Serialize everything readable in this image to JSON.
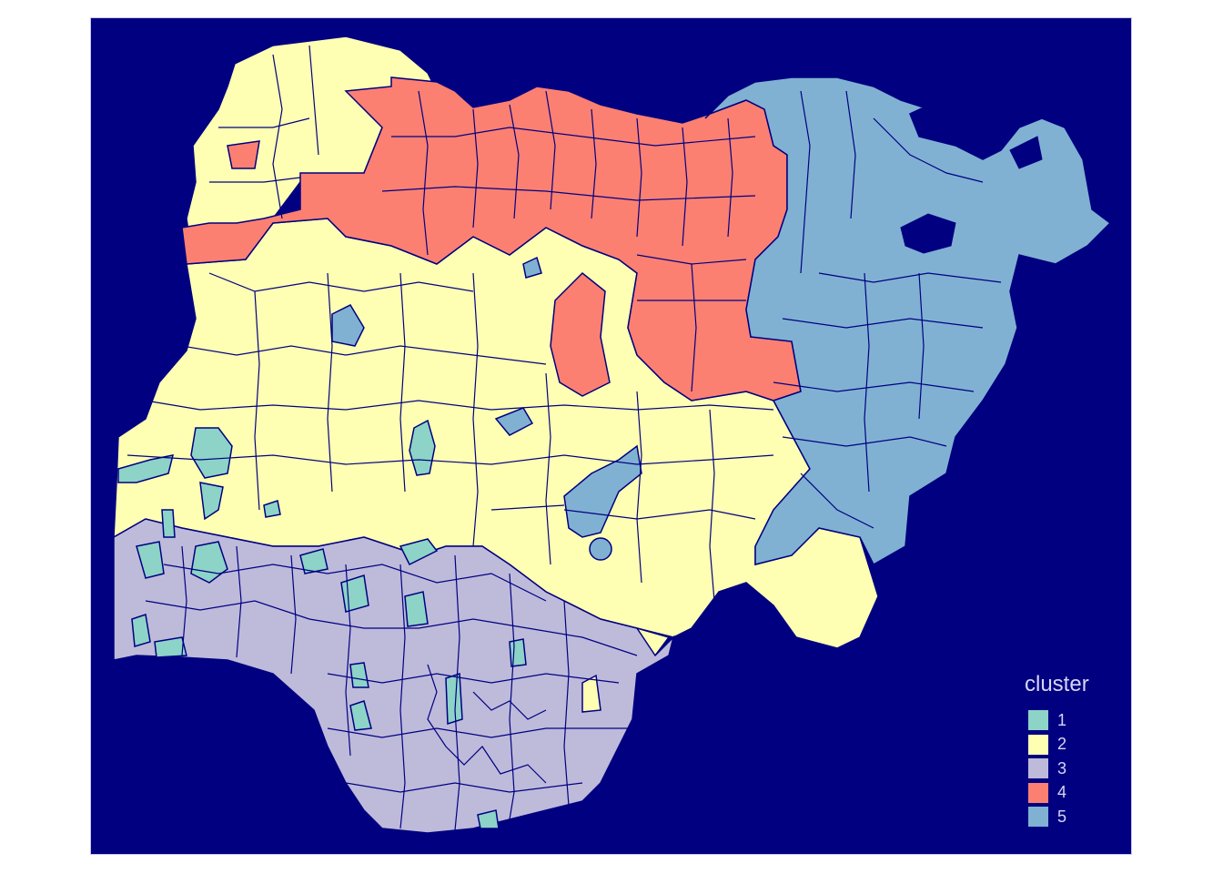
{
  "map": {
    "background_color": "#000080",
    "border_color": "#000080"
  },
  "legend": {
    "title": "cluster",
    "placement": "bottom-right",
    "items": [
      {
        "label": "1",
        "color": "#8DD3C7"
      },
      {
        "label": "2",
        "color": "#FFFFB3"
      },
      {
        "label": "3",
        "color": "#BEBADA"
      },
      {
        "label": "4",
        "color": "#FB8072"
      },
      {
        "label": "5",
        "color": "#80B1D3"
      }
    ]
  }
}
